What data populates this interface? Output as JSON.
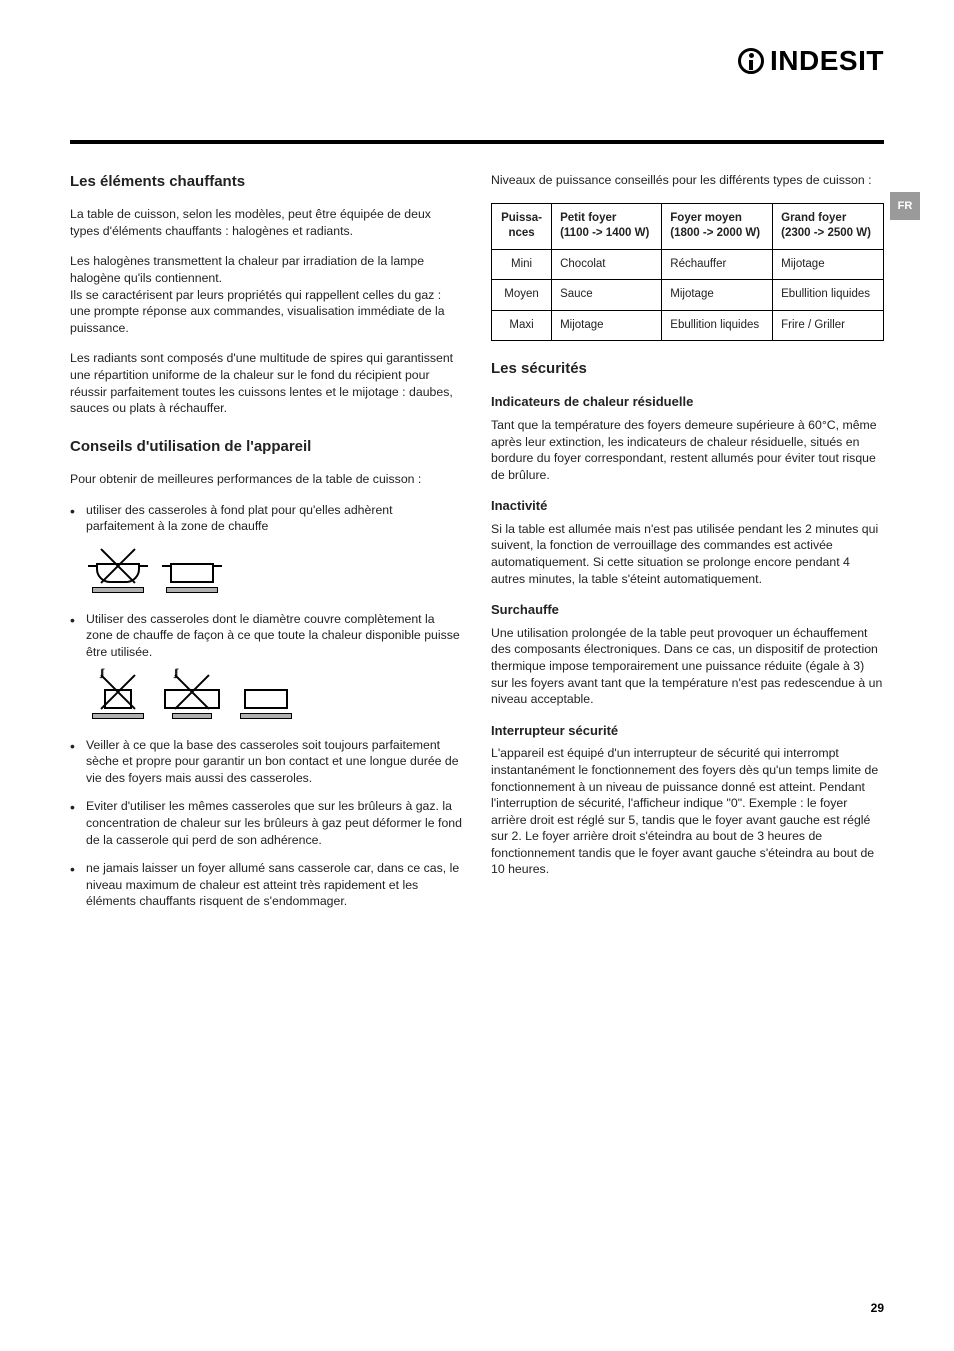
{
  "brand": "INDESIT",
  "lang_badge": "FR",
  "page_number": "29",
  "left": {
    "h1": "Les éléments chauffants",
    "p1": "La table de cuisson, selon les modèles, peut être équipée de deux types d'éléments chauffants : halogènes et radiants.",
    "p2": "Les halogènes transmettent la chaleur par irradiation de la lampe halogène qu'ils contiennent.",
    "p3": "Ils se caractérisent par leurs propriétés qui rappellent celles du gaz : une prompte réponse aux commandes, visualisation immédiate de la puissance.",
    "p4": "Les radiants sont composés d'une multitude de spires qui garantissent une répartition uniforme de la chaleur sur le fond du récipient pour réussir parfaitement toutes les cuissons lentes et le mijotage : daubes, sauces ou plats à réchauffer.",
    "h2": "Conseils d'utilisation de l'appareil",
    "p5": "Pour obtenir de meilleures performances de la table de cuisson :",
    "li1": "utiliser des casseroles à fond plat pour qu'elles adhèrent parfaitement à la zone de chauffe",
    "li2": "Utiliser des casseroles dont le diamètre couvre complètement la zone de chauffe de façon à ce que toute la chaleur disponible puisse être utilisée.",
    "li3": "Veiller à ce que la base des casseroles soit toujours parfaitement sèche et propre pour garantir un bon contact et une longue durée de vie des foyers mais aussi des casseroles.",
    "li4": "Eviter d'utiliser les mêmes casseroles que sur les brûleurs à gaz. la concentration de chaleur sur les brûleurs à gaz peut déformer le fond de la casserole qui perd de son adhérence.",
    "li5": "ne jamais laisser un foyer allumé sans casserole car, dans ce cas, le niveau maximum de chaleur est atteint très rapidement et les éléments chauffants risquent de s'endommager."
  },
  "right": {
    "p_intro": "Niveaux de puissance conseillés pour les différents types de cuisson :",
    "table": {
      "headers": [
        "Puissa-\nnces",
        "Petit foyer\n(1100 -> 1400 W)",
        "Foyer moyen\n(1800 -> 2000 W)",
        "Grand foyer\n(2300 -> 2500 W)"
      ],
      "rows": [
        [
          "Mini",
          "Chocolat",
          "Réchauffer",
          "Mijotage"
        ],
        [
          "Moyen",
          "Sauce",
          "Mijotage",
          "Ebullition liquides"
        ],
        [
          "Maxi",
          "Mijotage",
          "Ebullition liquides",
          "Frire / Griller"
        ]
      ]
    },
    "h1": "Les sécurités",
    "h_ind": "Indicateurs de chaleur résiduelle",
    "p_ind": "Tant que la température des foyers demeure supérieure à 60°C, même après leur extinction, les indicateurs de chaleur résiduelle, situés en bordure du foyer correspondant, restent allumés pour éviter tout risque de brûlure.",
    "h_inact": "Inactivité",
    "p_inact": "Si la table est allumée mais n'est pas utilisée pendant les 2 minutes qui suivent, la fonction de verrouillage des commandes est activée automatiquement. Si cette situation se prolonge encore pendant 4 autres minutes, la table s'éteint automatiquement.",
    "h_sur": "Surchauffe",
    "p_sur": "Une utilisation prolongée de la table peut provoquer un échauffement des composants électroniques. Dans ce cas, un dispositif de protection thermique impose temporairement une puissance réduite (égale à 3) sur les foyers avant tant que la température n'est pas redescendue à un niveau acceptable.",
    "h_int": "Interrupteur sécurité",
    "p_int": "L'appareil est équipé d'un interrupteur de sécurité qui interrompt instantanément le fonctionnement des foyers dès qu'un temps limite de fonctionnement à un niveau de puissance donné est atteint. Pendant l'interruption de sécurité, l'afficheur indique \"0\". Exemple : le foyer arrière droit est réglé sur 5, tandis que le foyer avant gauche est réglé sur 2. Le foyer arrière droit s'éteindra au bout de 3 heures de fonctionnement tandis que le foyer avant gauche s'éteindra au bout de 10 heures."
  }
}
